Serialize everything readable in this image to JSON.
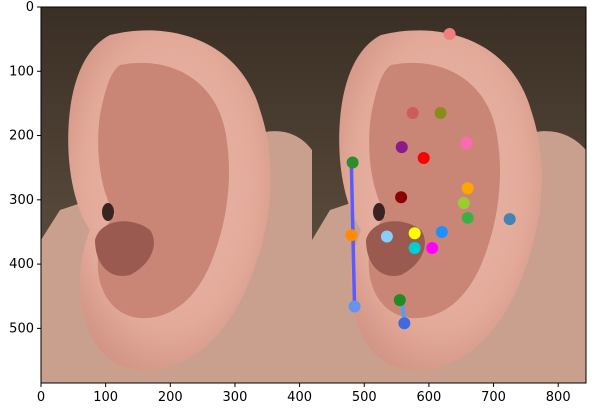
{
  "axes": {
    "x_ticks": [
      "0",
      "100",
      "200",
      "300",
      "400",
      "500",
      "600",
      "700",
      "800"
    ],
    "y_ticks": [
      "0",
      "100",
      "200",
      "300",
      "400",
      "500"
    ],
    "xlim": [
      0,
      843
    ],
    "ylim": [
      585,
      0
    ]
  },
  "image": {
    "description_tag": "ear-photo-pair",
    "left_panel_x_range": [
      0,
      420
    ],
    "right_panel_x_range": [
      420,
      843
    ]
  },
  "chart_data": {
    "type": "scatter",
    "x": [
      632,
      575,
      618,
      558,
      592,
      658,
      660,
      557,
      654,
      660,
      725,
      480,
      535,
      578,
      620,
      578,
      605,
      555,
      485,
      562
    ],
    "y": [
      42,
      165,
      165,
      218,
      235,
      212,
      282,
      296,
      305,
      328,
      330,
      355,
      357,
      352,
      350,
      375,
      375,
      456,
      466,
      492
    ],
    "colors": [
      "#f08080",
      "#cd5c5c",
      "#8b8b1a",
      "#8b1a8b",
      "#ff0000",
      "#ff69b4",
      "#ffa500",
      "#8b0000",
      "#9acd32",
      "#3cb043",
      "#4682b4",
      "#ff8c00",
      "#87cefa",
      "#ffff00",
      "#1e90ff",
      "#00ced1",
      "#ff00ff",
      "#228b22",
      "#6495ed",
      "#4169e1"
    ],
    "segments": [
      {
        "x": [
          480,
          485
        ],
        "y": [
          242,
          466
        ],
        "color": "#5a5aff"
      },
      {
        "x": [
          558,
          562
        ],
        "y": [
          456,
          492
        ],
        "color": "#4aa0ff"
      }
    ],
    "extra_points": [
      {
        "x": 482,
        "y": 242,
        "color": "#2e8b2e"
      }
    ]
  }
}
